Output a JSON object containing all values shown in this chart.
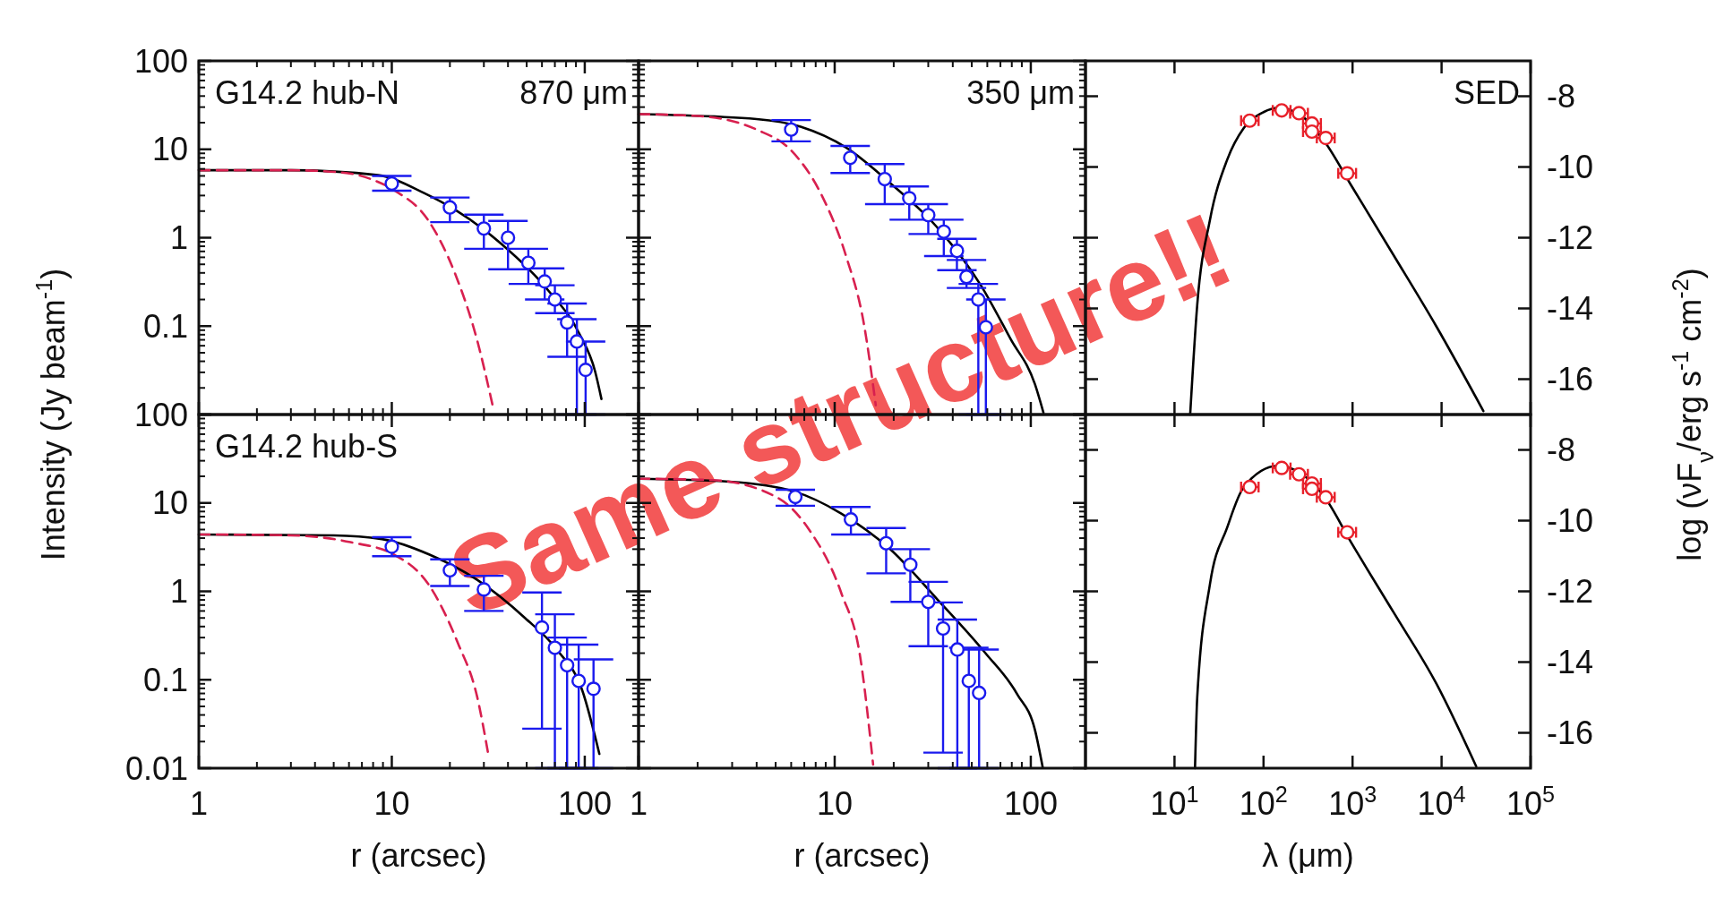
{
  "chart_data": [
    {
      "type": "line",
      "title": "G14.2 hub-N",
      "subtitle": "870 μm",
      "ylabel": "Intensity (Jy beam$^{-1}$)",
      "log": "xy",
      "xlim": [
        1,
        190
      ],
      "ylim": [
        0.01,
        100
      ],
      "xticks": [
        1,
        10,
        100
      ],
      "yticks": [
        {
          "value": 0.01,
          "label": null
        },
        0.1,
        1,
        10,
        100
      ],
      "tick_labels": "y",
      "series": [
        {
          "type": "line",
          "color": "#000000",
          "x": [
            1,
            3,
            8.5,
            14.7,
            21.4,
            37,
            65,
            94,
            113,
            122
          ],
          "values": [
            5.8,
            5.8,
            5.1,
            3.2,
            2.05,
            0.85,
            0.25,
            0.081,
            0.031,
            0.015
          ]
        },
        {
          "type": "line",
          "color": "#d8204f",
          "line_style": "dashed",
          "x": [
            1,
            3,
            5.8,
            7.8,
            10.5,
            15.3,
            21.4,
            27.7,
            33.3
          ],
          "values": [
            5.8,
            5.8,
            5.4,
            4.6,
            3.35,
            1.62,
            0.38,
            0.069,
            0.0127
          ]
        },
        {
          "type": "scatter",
          "color": "#1a1aee",
          "marker": "circle",
          "x": [
            10,
            20,
            30,
            40,
            51,
            62,
            70,
            81,
            91,
            101
          ],
          "values": [
            4.1,
            2.2,
            1.27,
            1.0,
            0.52,
            0.32,
            0.2,
            0.11,
            0.067,
            0.032
          ],
          "errors": [
            [
              3.4,
              5.0
            ],
            [
              1.5,
              2.85
            ],
            [
              0.75,
              1.82
            ],
            [
              0.44,
              1.55
            ],
            [
              0.3,
              0.75
            ],
            [
              0.2,
              0.45
            ],
            [
              0.14,
              0.29
            ],
            [
              0.045,
              0.18
            ],
            [
              0.01,
              0.12
            ],
            [
              0.01,
              0.067
            ]
          ]
        }
      ]
    },
    {
      "type": "line",
      "subtitle": "350 μm",
      "log": "xy",
      "xlim": [
        1,
        190
      ],
      "ylim": [
        0.01,
        100
      ],
      "xticks": [
        1,
        10,
        100
      ],
      "yticks": [
        0.01,
        0.1,
        1,
        10,
        100
      ],
      "tick_labels": false,
      "series": [
        {
          "type": "line",
          "color": "#000000",
          "x": [
            1,
            4,
            6.7,
            11.4,
            19.3,
            32.7,
            55.6,
            79,
            105,
            116
          ],
          "values": [
            25,
            22,
            18,
            10.5,
            4.1,
            1.37,
            0.29,
            0.071,
            0.022,
            0.0105
          ]
        },
        {
          "type": "line",
          "color": "#d8204f",
          "line_style": "dashed",
          "x": [
            1,
            2,
            4,
            6,
            8.6,
            11.4,
            14.1,
            16.2
          ],
          "values": [
            25,
            23.8,
            16.7,
            9.7,
            3.0,
            0.63,
            0.105,
            0.0127
          ]
        },
        {
          "type": "scatter",
          "color": "#1a1aee",
          "marker": "circle",
          "x": [
            6,
            12,
            18,
            24,
            30,
            36,
            42,
            47,
            54,
            59
          ],
          "values": [
            16.7,
            8.0,
            4.6,
            2.8,
            1.8,
            1.17,
            0.71,
            0.36,
            0.2,
            0.097
          ],
          "errors": [
            [
              12.3,
              21.4
            ],
            [
              5.4,
              10.9
            ],
            [
              2.4,
              6.8
            ],
            [
              1.6,
              3.8
            ],
            [
              1.1,
              2.4
            ],
            [
              0.62,
              1.6
            ],
            [
              0.43,
              0.97
            ],
            [
              0.27,
              0.56
            ],
            [
              0.01,
              0.3
            ],
            [
              0.01,
              0.2
            ]
          ]
        }
      ]
    },
    {
      "type": "line",
      "subtitle": "SED",
      "y2label": "log (νF$_{ν}$/erg s$^{-1}$ cm$^{-2}$)",
      "log": "x",
      "xlim": [
        1,
        100000
      ],
      "y2lim": [
        -17,
        -7
      ],
      "xticks": [
        {
          "value": 10,
          "label": null
        },
        {
          "value": 100,
          "label": null
        },
        {
          "value": 1000,
          "label": null
        },
        {
          "value": 10000,
          "label": null
        },
        {
          "value": 100000,
          "label": null
        }
      ],
      "y2ticks": [
        -16,
        -14,
        -12,
        -10,
        -8
      ],
      "tick_labels": "y",
      "series": [
        {
          "type": "line",
          "axis": "y2",
          "color": "#000000",
          "x": [
            15,
            18,
            25,
            39,
            60,
            100,
            145,
            250,
            490,
            955,
            2900,
            8700,
            29500
          ],
          "values": [
            -17,
            -13.9,
            -11.5,
            -9.8,
            -8.9,
            -8.45,
            -8.33,
            -8.5,
            -9.3,
            -10.5,
            -12.5,
            -14.5,
            -16.9
          ]
        },
        {
          "type": "scatter",
          "axis": "y2",
          "color": "#e8202a",
          "marker": "circle",
          "x": [
            70,
            160,
            250,
            350,
            350,
            500,
            870
          ],
          "values": [
            -8.69,
            -8.4,
            -8.48,
            -8.77,
            -9.0,
            -9.18,
            -10.18
          ],
          "xerrors": [
            [
              56,
              88
            ],
            [
              127,
              201
            ],
            [
              199,
              315
            ],
            [
              278,
              441
            ],
            [
              278,
              441
            ],
            [
              397,
              630
            ],
            [
              691,
              1095
            ]
          ]
        }
      ]
    },
    {
      "type": "line",
      "title": "G14.2 hub-S",
      "xlabel": "r (arcsec)",
      "log": "xy",
      "xlim": [
        1,
        190
      ],
      "ylim": [
        0.01,
        100
      ],
      "xticks": [
        1,
        10,
        100
      ],
      "yticks": [
        0.01,
        0.1,
        1,
        10,
        100
      ],
      "series": [
        {
          "type": "line",
          "color": "#000000",
          "x": [
            1,
            5,
            8.9,
            15.7,
            27.7,
            49,
            71.6,
            97,
            119
          ],
          "values": [
            4.4,
            4.3,
            3.9,
            2.6,
            1.35,
            0.5,
            0.22,
            0.076,
            0.0145
          ]
        },
        {
          "type": "line",
          "color": "#d8204f",
          "line_style": "dashed",
          "x": [
            1,
            3,
            6.1,
            10.3,
            15.7,
            22,
            27.7,
            31.6
          ],
          "values": [
            4.4,
            4.3,
            3.6,
            2.6,
            1.15,
            0.26,
            0.064,
            0.0145
          ]
        },
        {
          "type": "scatter",
          "color": "#1a1aee",
          "marker": "circle",
          "x": [
            10,
            20,
            30,
            60,
            70,
            81,
            93,
            111
          ],
          "values": [
            3.2,
            1.73,
            1.05,
            0.39,
            0.23,
            0.146,
            0.097,
            0.079
          ],
          "errors": [
            [
              2.5,
              4.1
            ],
            [
              1.15,
              2.3
            ],
            [
              0.6,
              1.5
            ],
            [
              0.028,
              0.97
            ],
            [
              0.01,
              0.55
            ],
            [
              0.01,
              0.3
            ],
            [
              0.01,
              0.25
            ],
            [
              0.01,
              0.17
            ]
          ]
        }
      ]
    },
    {
      "type": "line",
      "xlabel": "r (arcsec)",
      "log": "xy",
      "xlim": [
        1,
        190
      ],
      "ylim": [
        0.01,
        100
      ],
      "xticks": [
        1,
        10,
        100
      ],
      "yticks": [
        0.01,
        0.1,
        1,
        10,
        100
      ],
      "tick_labels": "x",
      "annotations": [
        "Same structure!!"
      ],
      "series": [
        {
          "type": "line",
          "color": "#000000",
          "x": [
            1,
            2.9,
            6.2,
            10.8,
            19,
            33.4,
            58.7,
            85.5,
            105,
            115
          ],
          "values": [
            18.8,
            17.4,
            13.5,
            7.6,
            3.06,
            0.81,
            0.2,
            0.068,
            0.027,
            0.0102
          ]
        },
        {
          "type": "line",
          "color": "#d8204f",
          "line_style": "dashed",
          "x": [
            1,
            2.4,
            5.1,
            7.4,
            10.8,
            13.5,
            15.7
          ],
          "values": [
            18.8,
            18.1,
            11.5,
            5.0,
            0.96,
            0.18,
            0.011
          ]
        },
        {
          "type": "scatter",
          "color": "#1a1aee",
          "marker": "circle",
          "x": [
            6.3,
            12.1,
            18.3,
            24.3,
            30,
            35.7,
            42.2,
            48.3,
            54.5
          ],
          "values": [
            11.7,
            6.5,
            3.5,
            2.0,
            0.76,
            0.38,
            0.22,
            0.097,
            0.071
          ],
          "errors": [
            [
              9.3,
              14.1
            ],
            [
              4.4,
              9.0
            ],
            [
              1.6,
              5.2
            ],
            [
              0.76,
              3.0
            ],
            [
              0.24,
              1.28
            ],
            [
              0.015,
              0.75
            ],
            [
              0.01,
              0.48
            ],
            [
              0.01,
              0.23
            ],
            [
              0.01,
              0.22
            ]
          ]
        }
      ]
    },
    {
      "type": "line",
      "xlabel": "λ (μm)",
      "log": "x",
      "xlim": [
        1,
        100000
      ],
      "y2lim": [
        -17,
        -7
      ],
      "xticks": [
        {
          "value": 10,
          "label": "10$^{1}$"
        },
        {
          "value": 100,
          "label": "10$^{2}$"
        },
        {
          "value": 1000,
          "label": "10$^{3}$"
        },
        {
          "value": 10000,
          "label": "10$^{4}$"
        },
        {
          "value": 100000,
          "label": "10$^{5}$"
        }
      ],
      "y2ticks": [
        -16,
        -14,
        -12,
        -10,
        -8
      ],
      "series": [
        {
          "type": "line",
          "axis": "y2",
          "color": "#000000",
          "x": [
            17,
            18,
            25,
            39,
            60,
            145,
            490,
            955,
            2900,
            8700,
            24500
          ],
          "values": [
            -17,
            -15,
            -11.8,
            -10.2,
            -9.05,
            -8.45,
            -9.35,
            -10.6,
            -12.6,
            -14.6,
            -16.95
          ]
        },
        {
          "type": "scatter",
          "axis": "y2",
          "color": "#e8202a",
          "marker": "circle",
          "x": [
            70,
            160,
            250,
            350,
            350,
            500,
            870
          ],
          "values": [
            -9.05,
            -8.51,
            -8.69,
            -8.95,
            -9.1,
            -9.34,
            -10.33
          ],
          "xerrors": [
            [
              56,
              88
            ],
            [
              127,
              201
            ],
            [
              199,
              315
            ],
            [
              278,
              441
            ],
            [
              278,
              441
            ],
            [
              397,
              630
            ],
            [
              691,
              1095
            ]
          ]
        }
      ]
    }
  ]
}
